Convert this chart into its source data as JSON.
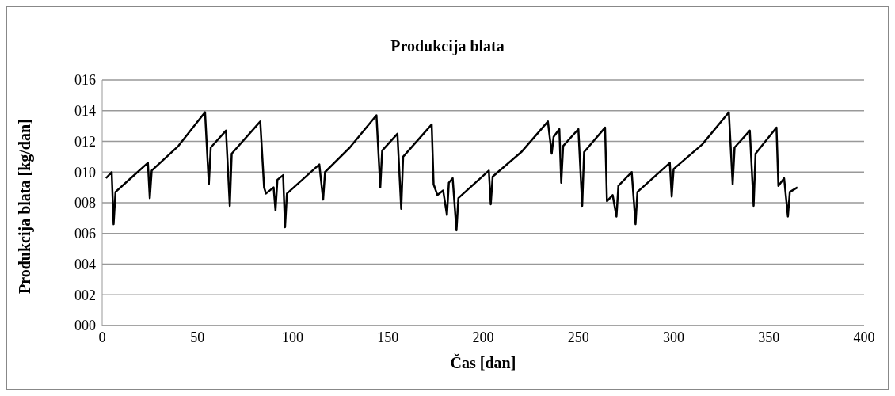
{
  "chart_data": {
    "type": "line",
    "title": "Produkcija blata",
    "xlabel": "Čas [dan]",
    "ylabel": "Produkcija blata [kg/dan]",
    "x": [
      2,
      5,
      6,
      7,
      15,
      24,
      25,
      26,
      40,
      54,
      56,
      57,
      65,
      67,
      68,
      83,
      85,
      86,
      90,
      91,
      92,
      95,
      96,
      97,
      114,
      116,
      117,
      130,
      144,
      146,
      147,
      155,
      157,
      158,
      173,
      174,
      176,
      179,
      181,
      182,
      184,
      186,
      187,
      203,
      204,
      205,
      220,
      234,
      236,
      237,
      240,
      241,
      242,
      250,
      252,
      253,
      264,
      265,
      268,
      270,
      271,
      278,
      280,
      281,
      298,
      299,
      300,
      315,
      329,
      331,
      332,
      340,
      342,
      343,
      354,
      355,
      358,
      360,
      361,
      365
    ],
    "series": [
      {
        "color": "#000000",
        "values": [
          9.6,
          10.0,
          6.6,
          8.7,
          9.6,
          10.6,
          8.3,
          10.1,
          11.7,
          13.9,
          9.2,
          11.6,
          12.7,
          7.8,
          11.2,
          13.3,
          9.0,
          8.6,
          9.0,
          7.5,
          9.5,
          9.8,
          6.4,
          8.6,
          10.5,
          8.2,
          10.0,
          11.6,
          13.7,
          9.0,
          11.4,
          12.5,
          7.6,
          11.0,
          13.1,
          9.2,
          8.5,
          8.8,
          7.2,
          9.3,
          9.6,
          6.2,
          8.3,
          10.1,
          7.9,
          9.7,
          11.3,
          13.3,
          11.2,
          12.3,
          12.8,
          9.3,
          11.7,
          12.8,
          7.8,
          11.3,
          12.9,
          8.1,
          8.5,
          7.1,
          9.1,
          10.0,
          6.6,
          8.7,
          10.6,
          8.4,
          10.2,
          11.8,
          13.9,
          9.2,
          11.6,
          12.7,
          7.8,
          11.2,
          12.9,
          9.1,
          9.6,
          7.1,
          8.7,
          9.0
        ]
      }
    ],
    "xlim": [
      0,
      400
    ],
    "xticks": [
      0,
      50,
      100,
      150,
      200,
      250,
      300,
      350,
      400
    ],
    "ylim": [
      0,
      16
    ],
    "yticks": [
      {
        "value": 0,
        "label": "000"
      },
      {
        "value": 2,
        "label": "002"
      },
      {
        "value": 4,
        "label": "004"
      },
      {
        "value": 6,
        "label": "006"
      },
      {
        "value": 8,
        "label": "008"
      },
      {
        "value": 10,
        "label": "010"
      },
      {
        "value": 12,
        "label": "012"
      },
      {
        "value": 14,
        "label": "014"
      },
      {
        "value": 16,
        "label": "016"
      }
    ],
    "grid": "y",
    "legend": false,
    "marker": "none",
    "line_style": "solid"
  }
}
